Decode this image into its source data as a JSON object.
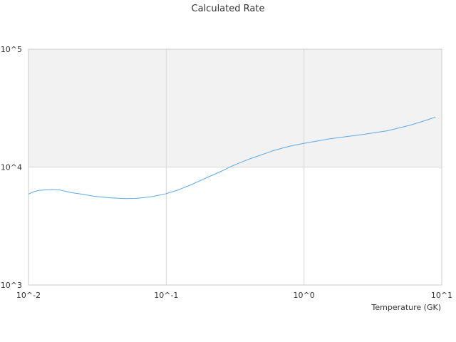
{
  "chart_data": {
    "type": "line",
    "title": "Calculated Rate",
    "xlabel": "Temperature (GK)",
    "ylabel": "",
    "x_scale": "log",
    "y_scale": "log",
    "xlim": [
      0.01,
      10
    ],
    "ylim": [
      1000,
      100000
    ],
    "x_tick_labels": [
      "10^-2",
      "10^-1",
      "10^0",
      "10^1"
    ],
    "y_tick_labels": [
      "10^3",
      "10^4",
      "10^5"
    ],
    "shaded_band": {
      "y_from": 10000,
      "y_to": 100000,
      "color": "#f2f2f2"
    },
    "grid": true,
    "legend": "none",
    "colors": {
      "line": "#5ca9e6",
      "grid": "#d8d8d8",
      "axis": "#cccccc",
      "text": "#333333"
    },
    "series": [
      {
        "x": [
          0.01,
          0.011,
          0.012,
          0.013,
          0.015,
          0.017,
          0.02,
          0.022,
          0.025,
          0.03,
          0.035,
          0.04,
          0.05,
          0.06,
          0.07,
          0.08,
          0.1,
          0.12,
          0.15,
          0.2,
          0.25,
          0.3,
          0.35,
          0.4,
          0.5,
          0.6,
          0.7,
          0.8,
          1.0,
          1.2,
          1.5,
          2.0,
          2.5,
          3.0,
          4.0,
          5.0,
          6.0,
          7.0,
          8.0,
          9.0
        ],
        "y": [
          5900,
          6200,
          6350,
          6400,
          6450,
          6380,
          6100,
          6000,
          5870,
          5650,
          5560,
          5480,
          5400,
          5420,
          5530,
          5630,
          5950,
          6350,
          7050,
          8200,
          9200,
          10200,
          11000,
          11700,
          12800,
          13800,
          14500,
          15100,
          15900,
          16500,
          17300,
          18100,
          18700,
          19300,
          20300,
          21600,
          22800,
          24100,
          25300,
          26600
        ]
      }
    ]
  }
}
